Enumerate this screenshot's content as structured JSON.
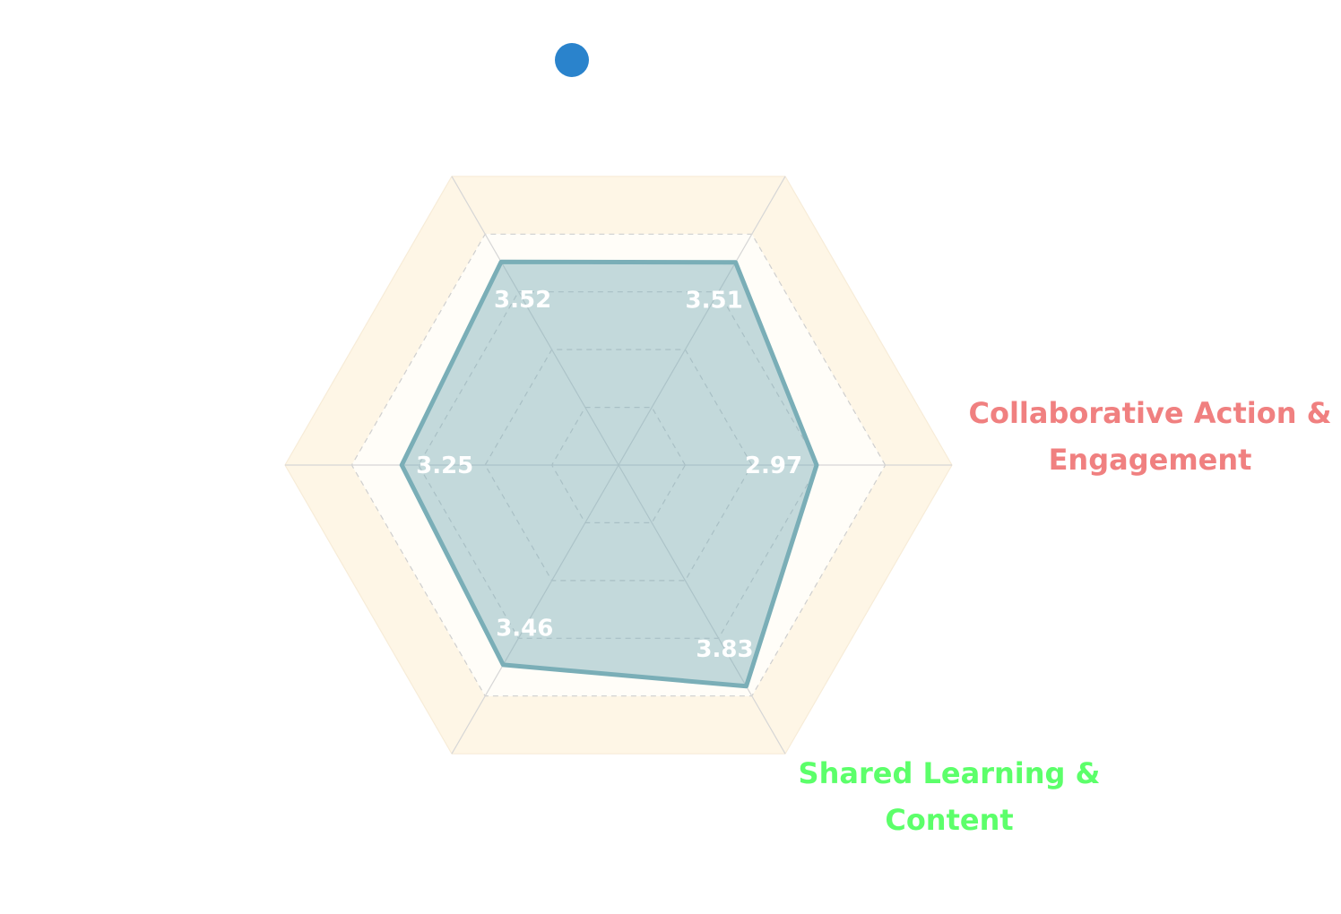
{
  "chart_data": {
    "type": "radar",
    "title": "",
    "axes": [
      {
        "name": "Collaborative Action & Engagement",
        "color": "#f08080"
      },
      {
        "name": "",
        "color": ""
      },
      {
        "name": "",
        "color": ""
      },
      {
        "name": "",
        "color": ""
      },
      {
        "name": "",
        "color": ""
      },
      {
        "name": "Shared Learning & Content",
        "color": "#5cff6a"
      }
    ],
    "series": [
      {
        "name": "",
        "color": "#2a83cc",
        "fill_color": "#7aaeb7",
        "values": [
          2.97,
          3.51,
          3.52,
          3.25,
          3.46,
          3.83
        ],
        "labels": [
          "2.97",
          "3.51",
          "3.52",
          "3.25",
          "3.46",
          "3.83"
        ]
      }
    ],
    "rlim": [
      0,
      5
    ],
    "grid_levels": [
      1,
      2,
      3,
      4,
      5
    ],
    "legend": "top",
    "band_color": "#fef6e6"
  }
}
